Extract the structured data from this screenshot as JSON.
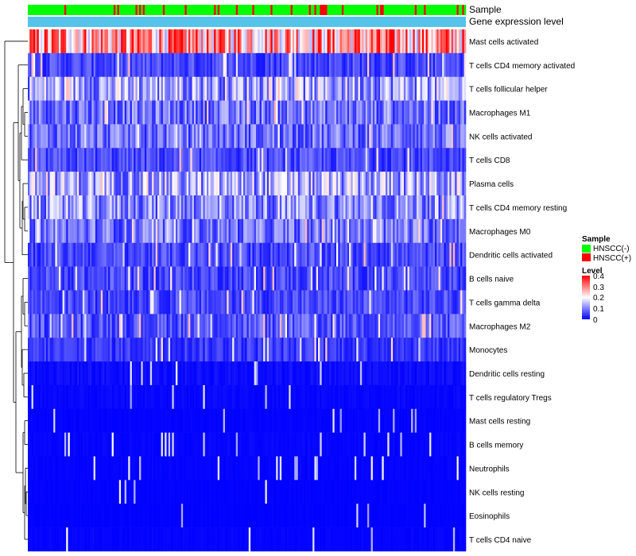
{
  "chart_data": {
    "type": "heatmap",
    "title": "",
    "n_samples": 240,
    "annotation_rows": [
      "Sample",
      "Gene expression level"
    ],
    "sample_groups": [
      "HNSCC(-)",
      "HNSCC(+)"
    ],
    "sample_group_colors": [
      "#00ff00",
      "#ff0000"
    ],
    "gene_expression_color": "#56c3ea",
    "rows": [
      {
        "name": "Mast cells activated",
        "mean": 0.28
      },
      {
        "name": "T cells CD4 memory activated",
        "mean": 0.05
      },
      {
        "name": "T cells follicular helper",
        "mean": 0.12
      },
      {
        "name": "Macrophages M1",
        "mean": 0.08
      },
      {
        "name": "NK cells activated",
        "mean": 0.08
      },
      {
        "name": "T cells CD8",
        "mean": 0.05
      },
      {
        "name": "Plasma cells",
        "mean": 0.12
      },
      {
        "name": "T cells CD4 memory resting",
        "mean": 0.1
      },
      {
        "name": "Macrophages M0",
        "mean": 0.08
      },
      {
        "name": "Dendritic cells activated",
        "mean": 0.05
      },
      {
        "name": "B cells naive",
        "mean": 0.05
      },
      {
        "name": "T cells gamma delta",
        "mean": 0.05
      },
      {
        "name": "Macrophages M2",
        "mean": 0.06
      },
      {
        "name": "Monocytes",
        "mean": 0.04
      },
      {
        "name": "Dendritic cells resting",
        "mean": 0.02
      },
      {
        "name": "T cells regulatory  Tregs",
        "mean": 0.01
      },
      {
        "name": "Mast cells resting",
        "mean": 0.005
      },
      {
        "name": "B cells memory",
        "mean": 0.008
      },
      {
        "name": "Neutrophils",
        "mean": 0.006
      },
      {
        "name": "NK cells resting",
        "mean": 0.003
      },
      {
        "name": "Eosinophils",
        "mean": 0.002
      },
      {
        "name": "T cells CD4 naive",
        "mean": 0.006
      }
    ],
    "color_scale": {
      "min": 0,
      "max": 0.4,
      "colors": [
        "#0000ff",
        "#ffffff",
        "#ff0000"
      ]
    },
    "legend": {
      "sample_title": "Sample",
      "sample_items": [
        "HNSCC(-)",
        "HNSCC(+)"
      ],
      "level_title": "Level",
      "level_ticks": [
        "0.4",
        "0.3",
        "0.2",
        "0.1",
        "0"
      ]
    },
    "dendrogram": "rows"
  }
}
